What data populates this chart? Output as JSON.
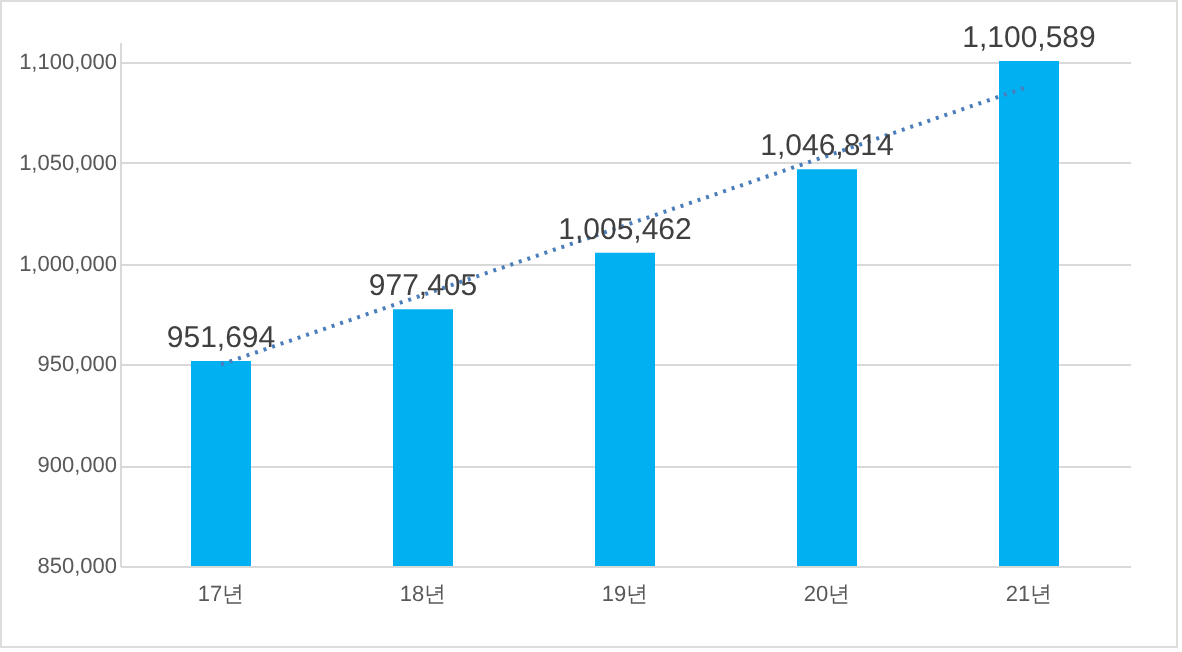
{
  "chart_data": {
    "type": "bar",
    "categories": [
      "17년",
      "18년",
      "19년",
      "20년",
      "21년"
    ],
    "series": [
      {
        "color": "#00b0f0",
        "values": [
          951694,
          977405,
          1005462,
          1046814,
          1100589
        ],
        "value_labels": [
          "951,694",
          "977,405",
          "1,005,462",
          "1,046,814",
          "1,100,589"
        ]
      },
      {
        "type": "line",
        "x": [
          "17년",
          "21년"
        ],
        "values": [
          950000,
          1088000
        ],
        "color": "#4a7ebb",
        "line_style": "dotted",
        "marker": "none"
      }
    ],
    "ylim": [
      850000,
      1110000
    ],
    "yticks": [
      {
        "value": 850000,
        "label": "850,000"
      },
      {
        "value": 900000,
        "label": "900,000"
      },
      {
        "value": 950000,
        "label": "950,000"
      },
      {
        "value": 1000000,
        "label": "1,000,000"
      },
      {
        "value": 1050000,
        "label": "1,050,000"
      },
      {
        "value": 1100000,
        "label": "1,100,000"
      }
    ],
    "grid": "y"
  }
}
